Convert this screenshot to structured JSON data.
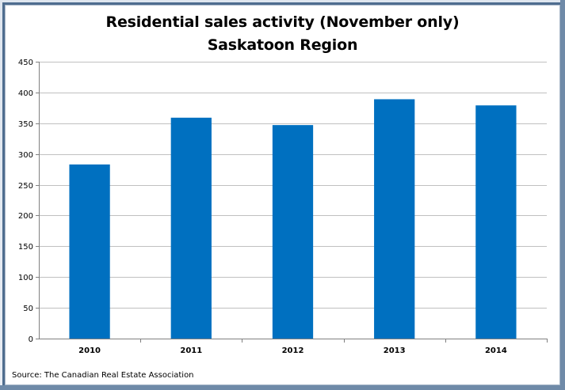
{
  "chart_data": {
    "type": "bar",
    "title": "Residential sales activity (November only)",
    "subtitle": "Saskatoon Region",
    "categories": [
      "2010",
      "2011",
      "2012",
      "2013",
      "2014"
    ],
    "values": [
      283,
      359,
      347,
      389,
      379
    ],
    "xlabel": "",
    "ylabel": "",
    "ylim": [
      0,
      450
    ],
    "yticks": [
      "0",
      "50",
      "100",
      "150",
      "200",
      "250",
      "300",
      "350",
      "400",
      "450"
    ],
    "grid": true,
    "legend": "none",
    "bar_color": "#0070c0",
    "grid_color": "#c0c0c0"
  },
  "source": "Source: The Canadian Real Estate Association"
}
